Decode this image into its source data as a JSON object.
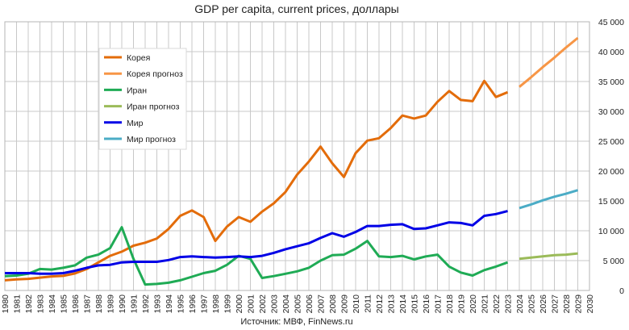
{
  "chart_data": {
    "type": "line",
    "title": "GDP per capita, current prices, доллары",
    "source": "Источник: МВФ, FinNews.ru",
    "x_ticks": [
      "1980",
      "1981",
      "1982",
      "1983",
      "1984",
      "1985",
      "1986",
      "1987",
      "1988",
      "1989",
      "1990",
      "1991",
      "1992",
      "1993",
      "1994",
      "1995",
      "1996",
      "1997",
      "1998",
      "1999",
      "2000",
      "2001",
      "2002",
      "2003",
      "2004",
      "2005",
      "2006",
      "2007",
      "2008",
      "2009",
      "2010",
      "2011",
      "2012",
      "2013",
      "2014",
      "2015",
      "2016",
      "2017",
      "2018",
      "2019",
      "2020",
      "2021",
      "2022",
      "2023",
      "2024",
      "2025",
      "2026",
      "2027",
      "2028",
      "2029",
      "2030"
    ],
    "y_ticks": [
      "0",
      "5 000",
      "10 000",
      "15 000",
      "20 000",
      "25 000",
      "30 000",
      "35 000",
      "40 000",
      "45 000"
    ],
    "xlim": [
      1980,
      2030
    ],
    "ylim": [
      0,
      45000
    ],
    "y_axis_side": "right",
    "grid": true,
    "legend_position": "top-left",
    "series": [
      {
        "name": "Корея",
        "color": "#E36C0A",
        "x": [
          1980,
          1981,
          1982,
          1983,
          1984,
          1985,
          1986,
          1987,
          1988,
          1989,
          1990,
          1991,
          1992,
          1993,
          1994,
          1995,
          1996,
          1997,
          1998,
          1999,
          2000,
          2001,
          2002,
          2003,
          2004,
          2005,
          2006,
          2007,
          2008,
          2009,
          2010,
          2011,
          2012,
          2013,
          2014,
          2015,
          2016,
          2017,
          2018,
          2019,
          2020,
          2021,
          2022,
          2023
        ],
        "values": [
          1700,
          1850,
          1950,
          2150,
          2350,
          2450,
          2850,
          3600,
          4700,
          5800,
          6500,
          7500,
          8000,
          8700,
          10300,
          12500,
          13400,
          12300,
          8300,
          10700,
          12300,
          11500,
          13200,
          14600,
          16500,
          19400,
          21600,
          24100,
          21300,
          19000,
          23000,
          25100,
          25500,
          27200,
          29300,
          28800,
          29300,
          31600,
          33400,
          31900,
          31700,
          35100,
          32400,
          33200
        ]
      },
      {
        "name": "Корея прогноз",
        "color": "#F79646",
        "x": [
          2024,
          2025,
          2026,
          2027,
          2028,
          2029
        ],
        "values": [
          34100,
          35700,
          37400,
          39000,
          40700,
          42300
        ]
      },
      {
        "name": "Иран",
        "color": "#1FAB55",
        "x": [
          1980,
          1981,
          1982,
          1983,
          1984,
          1985,
          1986,
          1987,
          1988,
          1989,
          1990,
          1991,
          1992,
          1993,
          1994,
          1995,
          1996,
          1997,
          1998,
          1999,
          2000,
          2001,
          2002,
          2003,
          2004,
          2005,
          2006,
          2007,
          2008,
          2009,
          2010,
          2011,
          2012,
          2013,
          2014,
          2015,
          2016,
          2017,
          2018,
          2019,
          2020,
          2021,
          2022,
          2023
        ],
        "values": [
          2400,
          2500,
          2800,
          3600,
          3500,
          3800,
          4200,
          5500,
          6000,
          7100,
          10600,
          5300,
          1000,
          1100,
          1300,
          1700,
          2300,
          2900,
          3300,
          4300,
          5800,
          5300,
          2100,
          2400,
          2800,
          3200,
          3800,
          5000,
          5900,
          6000,
          7000,
          8300,
          5700,
          5600,
          5800,
          5200,
          5700,
          6000,
          4000,
          3000,
          2500,
          3400,
          4000,
          4700
        ]
      },
      {
        "name": "Иран прогноз",
        "color": "#9BBB59",
        "x": [
          2024,
          2025,
          2026,
          2027,
          2028,
          2029
        ],
        "values": [
          5300,
          5500,
          5700,
          5900,
          6000,
          6200
        ]
      },
      {
        "name": "Мир",
        "color": "#0000E6",
        "x": [
          1980,
          1981,
          1982,
          1983,
          1984,
          1985,
          1986,
          1987,
          1988,
          1989,
          1990,
          1991,
          1992,
          1993,
          1994,
          1995,
          1996,
          1997,
          1998,
          1999,
          2000,
          2001,
          2002,
          2003,
          2004,
          2005,
          2006,
          2007,
          2008,
          2009,
          2010,
          2011,
          2012,
          2013,
          2014,
          2015,
          2016,
          2017,
          2018,
          2019,
          2020,
          2021,
          2022,
          2023
        ],
        "values": [
          2900,
          2900,
          2900,
          2800,
          2800,
          2900,
          3300,
          3800,
          4200,
          4300,
          4700,
          4800,
          4800,
          4800,
          5100,
          5600,
          5700,
          5600,
          5500,
          5600,
          5700,
          5600,
          5800,
          6300,
          6900,
          7400,
          7900,
          8800,
          9600,
          9000,
          9800,
          10800,
          10800,
          11000,
          11100,
          10300,
          10400,
          10900,
          11400,
          11300,
          10900,
          12500,
          12800,
          13300
        ]
      },
      {
        "name": "Мир прогноз",
        "color": "#4BACC6",
        "x": [
          2024,
          2025,
          2026,
          2027,
          2028,
          2029
        ],
        "values": [
          13800,
          14400,
          15100,
          15700,
          16200,
          16800
        ]
      }
    ]
  }
}
